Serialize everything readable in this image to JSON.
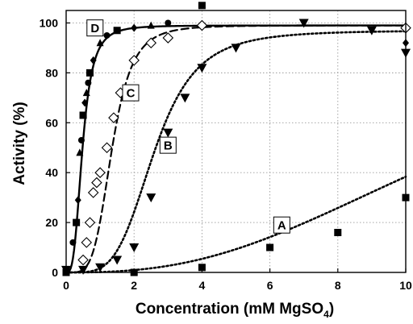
{
  "chart_data": {
    "type": "scatter",
    "xlabel": "Concentration (mM MgSO",
    "xlabel_subscript": "4",
    "xlabel_suffix": ")",
    "ylabel": "Activity (%)",
    "xlim": [
      0,
      10
    ],
    "ylim": [
      0,
      105
    ],
    "x_ticks": [
      0,
      2,
      4,
      6,
      8,
      10
    ],
    "y_ticks": [
      0,
      20,
      40,
      60,
      80,
      100
    ],
    "grid": true,
    "series": [
      {
        "name": "A",
        "marker": "square",
        "curve": "dotted",
        "label_at": [
          6.35,
          19
        ],
        "points": [
          [
            0,
            0
          ],
          [
            2,
            0
          ],
          [
            4,
            2
          ],
          [
            6,
            10
          ],
          [
            8,
            16
          ],
          [
            10,
            30
          ]
        ],
        "fit": {
          "half": 12,
          "n": 2.6
        }
      },
      {
        "name": "B",
        "marker": "triangle-down",
        "curve": "dotted",
        "label_at": [
          3.0,
          51
        ],
        "points": [
          [
            0,
            1
          ],
          [
            0.5,
            1
          ],
          [
            1,
            2
          ],
          [
            1.5,
            5
          ],
          [
            2,
            10
          ],
          [
            2.5,
            30
          ],
          [
            3,
            56
          ],
          [
            3.5,
            70
          ],
          [
            4,
            82
          ],
          [
            5,
            90
          ],
          [
            7,
            100
          ],
          [
            9,
            97
          ],
          [
            10,
            88
          ]
        ],
        "fit": {
          "half": 2.6,
          "n": 4.2,
          "max": 97
        }
      },
      {
        "name": "C",
        "marker": "diamond-open",
        "curve": "dashed",
        "label_at": [
          1.9,
          72
        ],
        "points": [
          [
            0.5,
            5
          ],
          [
            0.6,
            12
          ],
          [
            0.7,
            20
          ],
          [
            0.8,
            32
          ],
          [
            0.9,
            36
          ],
          [
            1,
            40
          ],
          [
            1.2,
            50
          ],
          [
            1.4,
            62
          ],
          [
            1.6,
            72
          ],
          [
            2,
            85
          ],
          [
            2.5,
            92
          ],
          [
            3,
            94
          ],
          [
            4,
            99
          ],
          [
            10,
            98
          ]
        ],
        "fit": {
          "half": 1.35,
          "n": 4.5,
          "max": 99
        }
      },
      {
        "name": "D",
        "marker": "mixed-filled",
        "curve": "solid",
        "label_at": [
          0.85,
          98
        ],
        "points": [
          [
            0.2,
            12
          ],
          [
            0.3,
            20
          ],
          [
            0.35,
            29
          ],
          [
            0.4,
            48
          ],
          [
            0.45,
            53
          ],
          [
            0.5,
            63
          ],
          [
            0.55,
            68
          ],
          [
            0.6,
            72
          ],
          [
            0.65,
            76
          ],
          [
            0.7,
            80
          ],
          [
            0.8,
            85
          ],
          [
            1,
            92
          ],
          [
            1.2,
            95
          ],
          [
            1.5,
            97
          ],
          [
            2,
            98
          ],
          [
            2.5,
            99
          ],
          [
            3,
            100
          ],
          [
            4,
            107
          ],
          [
            10,
            92
          ]
        ],
        "fit": {
          "half": 0.48,
          "n": 3.2,
          "max": 99
        }
      }
    ]
  }
}
